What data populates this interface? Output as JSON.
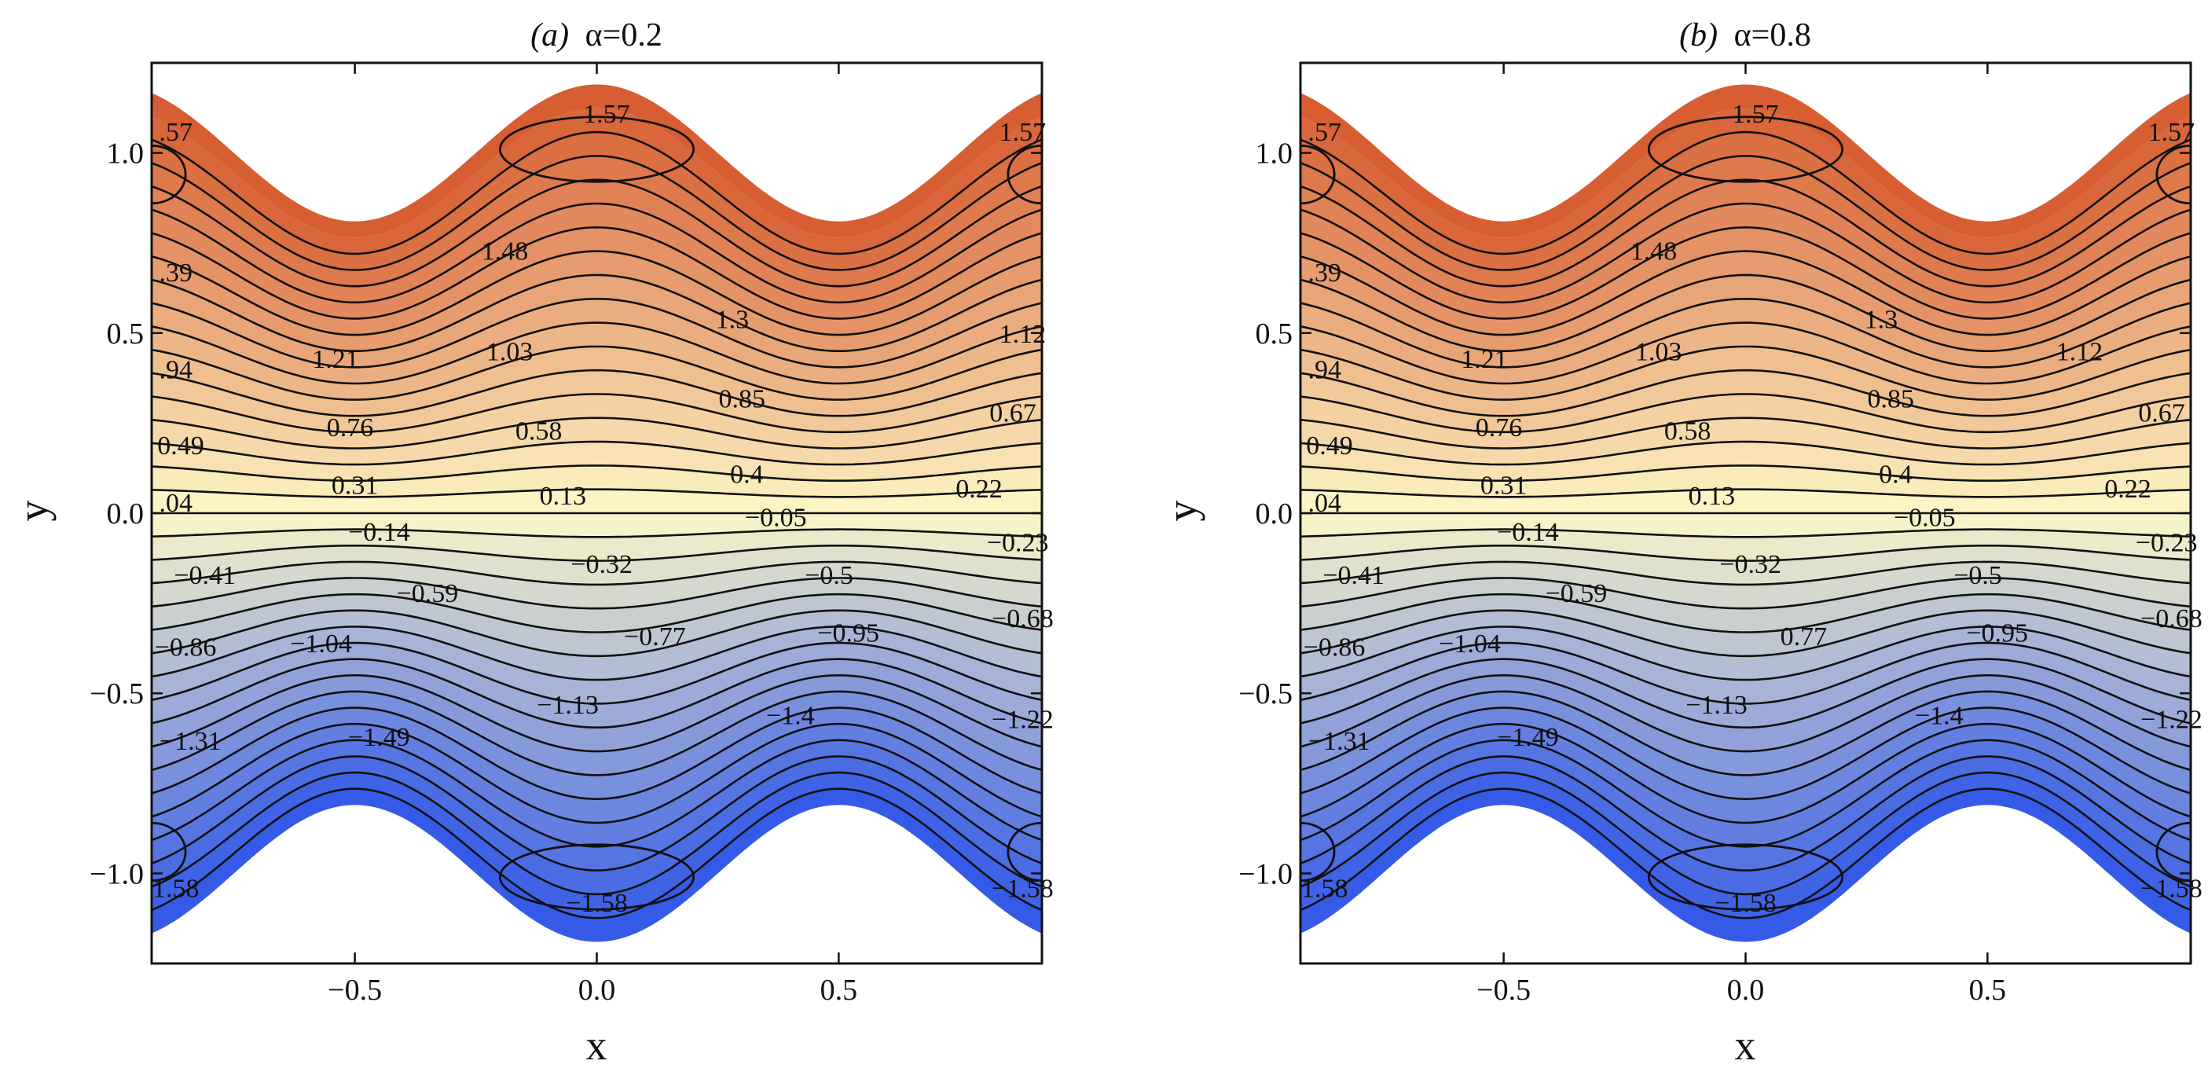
{
  "chart_data": [
    {
      "type": "contour",
      "title_prefix": "(a)",
      "title_param": "α=0.2",
      "alpha": 0.2,
      "xlabel": "x",
      "ylabel": "y",
      "xlim": [
        -0.92,
        0.92
      ],
      "ylim": [
        -1.25,
        1.25
      ],
      "xticks": [
        "−0.5",
        "0.0",
        "0.5"
      ],
      "xtick_values": [
        -0.5,
        0.0,
        0.5
      ],
      "yticks": [
        "1.0",
        "0.5",
        "0.0",
        "−0.5",
        "−1.0"
      ],
      "ytick_values": [
        1.0,
        0.5,
        0.0,
        -0.5,
        -1.0
      ],
      "color_high": "#d65a2e",
      "color_mid": "#fdf8c8",
      "color_low": "#2f55e8",
      "contour_labels": [
        {
          "text": ".57",
          "x": -0.87,
          "y": 1.06
        },
        {
          "text": "1.57",
          "x": 0.02,
          "y": 1.11
        },
        {
          "text": "1.57",
          "x": 0.88,
          "y": 1.06
        },
        {
          "text": "1.48",
          "x": -0.19,
          "y": 0.73
        },
        {
          "text": ".39",
          "x": -0.87,
          "y": 0.67
        },
        {
          "text": "1.3",
          "x": 0.28,
          "y": 0.54
        },
        {
          "text": "1.21",
          "x": -0.54,
          "y": 0.43
        },
        {
          "text": "1.03",
          "x": -0.18,
          "y": 0.45
        },
        {
          "text": "1.12",
          "x": 0.88,
          "y": 0.5
        },
        {
          "text": ".94",
          "x": -0.87,
          "y": 0.4
        },
        {
          "text": "0.85",
          "x": 0.3,
          "y": 0.32
        },
        {
          "text": "0.76",
          "x": -0.51,
          "y": 0.24
        },
        {
          "text": "0.58",
          "x": -0.12,
          "y": 0.23
        },
        {
          "text": "0.67",
          "x": 0.86,
          "y": 0.28
        },
        {
          "text": "0.49",
          "x": -0.86,
          "y": 0.19
        },
        {
          "text": "0.4",
          "x": 0.31,
          "y": 0.11
        },
        {
          "text": "0.31",
          "x": -0.5,
          "y": 0.08
        },
        {
          "text": "0.22",
          "x": 0.79,
          "y": 0.07
        },
        {
          "text": "0.13",
          "x": -0.07,
          "y": 0.05
        },
        {
          "text": ".04",
          "x": -0.87,
          "y": 0.03
        },
        {
          "text": "−0.05",
          "x": 0.37,
          "y": -0.01
        },
        {
          "text": "−0.14",
          "x": -0.45,
          "y": -0.05
        },
        {
          "text": "−0.23",
          "x": 0.87,
          "y": -0.08
        },
        {
          "text": "−0.41",
          "x": -0.81,
          "y": -0.17
        },
        {
          "text": "−0.32",
          "x": 0.01,
          "y": -0.14
        },
        {
          "text": "−0.5",
          "x": 0.48,
          "y": -0.17
        },
        {
          "text": "−0.59",
          "x": -0.35,
          "y": -0.22
        },
        {
          "text": "−0.68",
          "x": 0.88,
          "y": -0.29
        },
        {
          "text": "−0.77",
          "x": 0.12,
          "y": -0.34
        },
        {
          "text": "−0.95",
          "x": 0.52,
          "y": -0.33
        },
        {
          "text": "−0.86",
          "x": -0.85,
          "y": -0.37
        },
        {
          "text": "−1.04",
          "x": -0.57,
          "y": -0.36
        },
        {
          "text": "−1.13",
          "x": -0.06,
          "y": -0.53
        },
        {
          "text": "−1.4",
          "x": 0.4,
          "y": -0.56
        },
        {
          "text": "−1.22",
          "x": 0.88,
          "y": -0.57
        },
        {
          "text": "−1.31",
          "x": -0.84,
          "y": -0.63
        },
        {
          "text": "−1.49",
          "x": -0.45,
          "y": -0.62
        },
        {
          "text": "1.58",
          "x": -0.87,
          "y": -1.04
        },
        {
          "text": "−1.58",
          "x": 0.0,
          "y": -1.08
        },
        {
          "text": "−1.58",
          "x": 0.88,
          "y": -1.04
        }
      ]
    },
    {
      "type": "contour",
      "title_prefix": "(b)",
      "title_param": "α=0.8",
      "alpha": 0.8,
      "xlabel": "x",
      "ylabel": "y",
      "xlim": [
        -0.92,
        0.92
      ],
      "ylim": [
        -1.25,
        1.25
      ],
      "xticks": [
        "−0.5",
        "0.0",
        "0.5"
      ],
      "xtick_values": [
        -0.5,
        0.0,
        0.5
      ],
      "yticks": [
        "1.0",
        "0.5",
        "0.0",
        "−0.5",
        "−1.0"
      ],
      "ytick_values": [
        1.0,
        0.5,
        0.0,
        -0.5,
        -1.0
      ],
      "color_high": "#d65a2e",
      "color_mid": "#fdf8c8",
      "color_low": "#2f55e8",
      "contour_labels": [
        {
          "text": ".57",
          "x": -0.87,
          "y": 1.06
        },
        {
          "text": "1.57",
          "x": 0.02,
          "y": 1.11
        },
        {
          "text": "1.57",
          "x": 0.88,
          "y": 1.06
        },
        {
          "text": "1.48",
          "x": -0.19,
          "y": 0.73
        },
        {
          "text": ".39",
          "x": -0.87,
          "y": 0.67
        },
        {
          "text": "1.3",
          "x": 0.28,
          "y": 0.54
        },
        {
          "text": "1.21",
          "x": -0.54,
          "y": 0.43
        },
        {
          "text": "1.03",
          "x": -0.18,
          "y": 0.45
        },
        {
          "text": "1.12",
          "x": 0.69,
          "y": 0.45
        },
        {
          "text": ".94",
          "x": -0.87,
          "y": 0.4
        },
        {
          "text": "0.85",
          "x": 0.3,
          "y": 0.32
        },
        {
          "text": "0.76",
          "x": -0.51,
          "y": 0.24
        },
        {
          "text": "0.58",
          "x": -0.12,
          "y": 0.23
        },
        {
          "text": "0.67",
          "x": 0.86,
          "y": 0.28
        },
        {
          "text": "0.49",
          "x": -0.86,
          "y": 0.19
        },
        {
          "text": "0.4",
          "x": 0.31,
          "y": 0.11
        },
        {
          "text": "0.31",
          "x": -0.5,
          "y": 0.08
        },
        {
          "text": "0.22",
          "x": 0.79,
          "y": 0.07
        },
        {
          "text": "0.13",
          "x": -0.07,
          "y": 0.05
        },
        {
          "text": ".04",
          "x": -0.87,
          "y": 0.03
        },
        {
          "text": "−0.05",
          "x": 0.37,
          "y": -0.01
        },
        {
          "text": "−0.14",
          "x": -0.45,
          "y": -0.05
        },
        {
          "text": "−0.23",
          "x": 0.87,
          "y": -0.08
        },
        {
          "text": "−0.41",
          "x": -0.81,
          "y": -0.17
        },
        {
          "text": "−0.32",
          "x": 0.01,
          "y": -0.14
        },
        {
          "text": "−0.5",
          "x": 0.48,
          "y": -0.17
        },
        {
          "text": "−0.59",
          "x": -0.35,
          "y": -0.22
        },
        {
          "text": "−0.68",
          "x": 0.88,
          "y": -0.29
        },
        {
          "text": "0.77",
          "x": 0.12,
          "y": -0.34
        },
        {
          "text": "−0.95",
          "x": 0.52,
          "y": -0.33
        },
        {
          "text": "−0.86",
          "x": -0.85,
          "y": -0.37
        },
        {
          "text": "−1.04",
          "x": -0.57,
          "y": -0.36
        },
        {
          "text": "−1.13",
          "x": -0.06,
          "y": -0.53
        },
        {
          "text": "−1.4",
          "x": 0.4,
          "y": -0.56
        },
        {
          "text": "−1.22",
          "x": 0.88,
          "y": -0.57
        },
        {
          "text": "−1.31",
          "x": -0.84,
          "y": -0.63
        },
        {
          "text": "−1.49",
          "x": -0.45,
          "y": -0.62
        },
        {
          "text": "1.58",
          "x": -0.87,
          "y": -1.04
        },
        {
          "text": "−1.58",
          "x": 0.0,
          "y": -1.08
        },
        {
          "text": "−1.58",
          "x": 0.88,
          "y": -1.04
        }
      ]
    }
  ]
}
